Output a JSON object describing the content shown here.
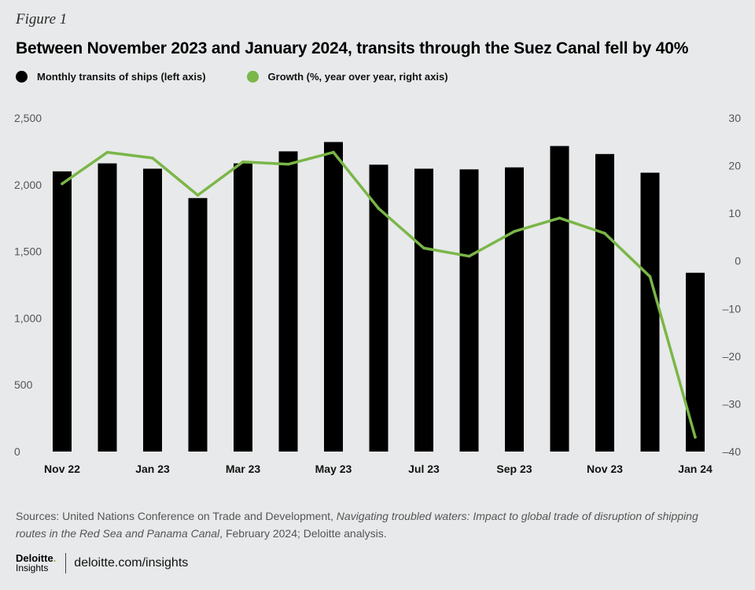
{
  "figure_label": "Figure 1",
  "title": "Between November 2023 and January 2024, transits through the Suez Canal fell by 40%",
  "legend": {
    "bars": "Monthly transits of ships (left axis)",
    "line": "Growth (%, year over year, right axis)"
  },
  "colors": {
    "bars": "#000000",
    "line": "#7ab648",
    "background": "#e8e9ea"
  },
  "chart_data": {
    "type": "bar+line",
    "categories": [
      "Nov 22",
      "Dec 22",
      "Jan 23",
      "Feb 23",
      "Mar 23",
      "Apr 23",
      "May 23",
      "Jun 23",
      "Jul 23",
      "Aug 23",
      "Sep 23",
      "Oct 23",
      "Nov 23",
      "Dec 23",
      "Jan 24"
    ],
    "x_tick_labels": [
      "Nov 22",
      "",
      "Jan 23",
      "",
      "Mar 23",
      "",
      "May 23",
      "",
      "Jul 23",
      "",
      "Sep 23",
      "",
      "Nov 23",
      "",
      "Jan 24"
    ],
    "series": [
      {
        "name": "Monthly transits of ships (left axis)",
        "type": "bar",
        "axis": "left",
        "values": [
          2100,
          2160,
          2120,
          1900,
          2160,
          2250,
          2320,
          2150,
          2120,
          2115,
          2130,
          2290,
          2230,
          2090,
          1340
        ]
      },
      {
        "name": "Growth (%, year over year, right axis)",
        "type": "line",
        "axis": "right",
        "values": [
          16.2,
          22.8,
          21.6,
          13.8,
          20.8,
          20.3,
          22.8,
          11.0,
          2.7,
          1.0,
          6.2,
          9.0,
          5.8,
          -3.3,
          -37.0
        ]
      }
    ],
    "left_axis": {
      "ylim": [
        0,
        2500
      ],
      "ticks": [
        0,
        500,
        1000,
        1500,
        2000,
        2500
      ],
      "tick_labels": [
        "0",
        "500",
        "1,000",
        "1,500",
        "2,000",
        "2,500"
      ]
    },
    "right_axis": {
      "ylim": [
        -40,
        30
      ],
      "ticks": [
        -40,
        -30,
        -20,
        -10,
        0,
        10,
        20,
        30
      ],
      "tick_labels": [
        "–40",
        "–30",
        "–20",
        "–10",
        "0",
        "10",
        "20",
        "30"
      ]
    },
    "grid": false
  },
  "source": {
    "prefix": "Sources: United Nations Conference on Trade and Development, ",
    "italic": "Navigating troubled waters: Impact to global trade of disruption of shipping routes in the Red Sea and Panama Canal",
    "suffix": ", February 2024; Deloitte analysis."
  },
  "footer": {
    "logo_main": "Deloitte",
    "logo_dot": ".",
    "logo_sub": "Insights",
    "url": "deloitte.com/insights"
  }
}
